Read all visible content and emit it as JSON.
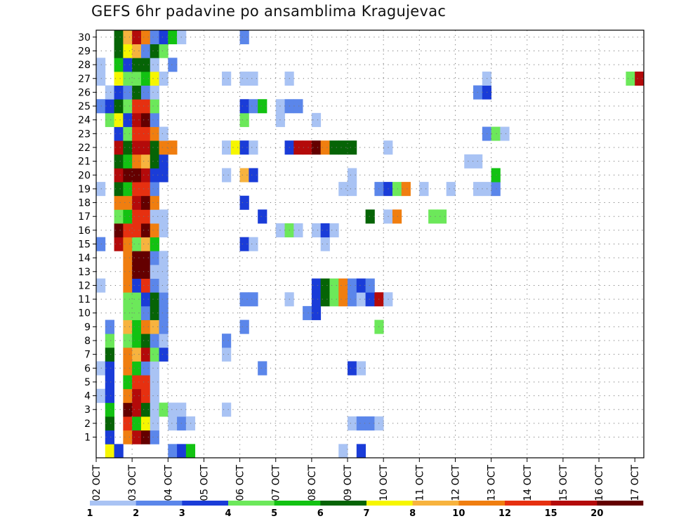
{
  "title": "GEFS 6hr padavine po ansamblima Kragujevac",
  "chart_data": {
    "type": "heatmap",
    "title": "GEFS 6hr padavine po ansamblima Kragujevac",
    "y_label_ticks": [
      "1",
      "2",
      "3",
      "4",
      "5",
      "6",
      "7",
      "8",
      "9",
      "10",
      "11",
      "12",
      "13",
      "14",
      "15",
      "16",
      "17",
      "18",
      "19",
      "20",
      "21",
      "22",
      "23",
      "24",
      "25",
      "26",
      "27",
      "28",
      "29",
      "30"
    ],
    "x_tick_labels": [
      "02 OCT",
      "03 OCT",
      "04 OCT",
      "05 OCT",
      "06 OCT",
      "07 OCT",
      "08 OCT",
      "09 OCT",
      "10 OCT",
      "11 OCT",
      "12 OCT",
      "13 OCT",
      "14 OCT",
      "15 OCT",
      "16 OCT",
      "17 OCT"
    ],
    "steps_per_day": 4,
    "legend_labels": [
      "1",
      "2",
      "3",
      "4",
      "5",
      "6",
      "7",
      "8",
      "10",
      "12",
      "15",
      "20"
    ],
    "legend_colors": [
      "#a9c3f4",
      "#5b86ea",
      "#1a3cd8",
      "#6ce85a",
      "#12c212",
      "#066406",
      "#f6f600",
      "#f7b33e",
      "#f07e10",
      "#e63010",
      "#b40a0a",
      "#640000"
    ],
    "rows": [
      {
        "member": 0,
        "cells": [
          [
            1,
            7
          ],
          [
            2,
            3
          ],
          [
            8,
            2
          ],
          [
            9,
            3
          ],
          [
            10,
            5
          ],
          [
            27,
            1
          ],
          [
            29,
            3
          ]
        ]
      },
      {
        "member": 1,
        "cells": [
          [
            1,
            3
          ],
          [
            3,
            9
          ],
          [
            4,
            11
          ],
          [
            5,
            12
          ],
          [
            6,
            2
          ]
        ]
      },
      {
        "member": 2,
        "cells": [
          [
            1,
            6
          ],
          [
            3,
            10
          ],
          [
            4,
            5
          ],
          [
            5,
            7
          ],
          [
            6,
            1
          ],
          [
            8,
            1
          ],
          [
            9,
            2
          ],
          [
            10,
            1
          ],
          [
            28,
            1
          ],
          [
            29,
            2
          ],
          [
            30,
            2
          ],
          [
            31,
            1
          ]
        ]
      },
      {
        "member": 3,
        "cells": [
          [
            1,
            5
          ],
          [
            3,
            12
          ],
          [
            4,
            11
          ],
          [
            5,
            6
          ],
          [
            6,
            1
          ],
          [
            7,
            4
          ],
          [
            8,
            1
          ],
          [
            9,
            1
          ],
          [
            14,
            1
          ]
        ]
      },
      {
        "member": 4,
        "cells": [
          [
            0,
            1
          ],
          [
            1,
            3
          ],
          [
            3,
            9
          ],
          [
            4,
            11
          ],
          [
            5,
            10
          ],
          [
            6,
            1
          ]
        ]
      },
      {
        "member": 5,
        "cells": [
          [
            1,
            3
          ],
          [
            3,
            5
          ],
          [
            4,
            10
          ],
          [
            5,
            10
          ],
          [
            6,
            1
          ]
        ]
      },
      {
        "member": 6,
        "cells": [
          [
            0,
            1
          ],
          [
            1,
            3
          ],
          [
            3,
            9
          ],
          [
            4,
            5
          ],
          [
            5,
            2
          ],
          [
            6,
            1
          ],
          [
            18,
            2
          ],
          [
            28,
            3
          ],
          [
            29,
            1
          ]
        ]
      },
      {
        "member": 7,
        "cells": [
          [
            1,
            6
          ],
          [
            3,
            9
          ],
          [
            4,
            8
          ],
          [
            5,
            11
          ],
          [
            6,
            4
          ],
          [
            7,
            3
          ],
          [
            14,
            1
          ]
        ]
      },
      {
        "member": 8,
        "cells": [
          [
            1,
            4
          ],
          [
            3,
            4
          ],
          [
            4,
            5
          ],
          [
            5,
            6
          ],
          [
            6,
            2
          ],
          [
            7,
            1
          ],
          [
            14,
            2
          ]
        ]
      },
      {
        "member": 9,
        "cells": [
          [
            1,
            2
          ],
          [
            3,
            8
          ],
          [
            4,
            5
          ],
          [
            5,
            9
          ],
          [
            6,
            8
          ],
          [
            7,
            2
          ],
          [
            16,
            2
          ],
          [
            31,
            4
          ]
        ]
      },
      {
        "member": 10,
        "cells": [
          [
            3,
            4
          ],
          [
            4,
            4
          ],
          [
            5,
            2
          ],
          [
            6,
            6
          ],
          [
            7,
            2
          ],
          [
            23,
            2
          ],
          [
            24,
            3
          ]
        ]
      },
      {
        "member": 11,
        "cells": [
          [
            3,
            4
          ],
          [
            4,
            4
          ],
          [
            5,
            3
          ],
          [
            6,
            6
          ],
          [
            7,
            2
          ],
          [
            16,
            2
          ],
          [
            17,
            2
          ],
          [
            21,
            1
          ],
          [
            24,
            3
          ],
          [
            25,
            6
          ],
          [
            26,
            4
          ],
          [
            27,
            9
          ],
          [
            28,
            2
          ],
          [
            29,
            1
          ],
          [
            30,
            3
          ],
          [
            31,
            11
          ],
          [
            32,
            1
          ]
        ]
      },
      {
        "member": 12,
        "cells": [
          [
            0,
            1
          ],
          [
            3,
            9
          ],
          [
            4,
            3
          ],
          [
            5,
            10
          ],
          [
            6,
            2
          ],
          [
            7,
            1
          ],
          [
            24,
            3
          ],
          [
            25,
            6
          ],
          [
            26,
            4
          ],
          [
            27,
            9
          ],
          [
            28,
            2
          ],
          [
            29,
            3
          ],
          [
            30,
            2
          ]
        ]
      },
      {
        "member": 13,
        "cells": [
          [
            3,
            9
          ],
          [
            4,
            12
          ],
          [
            5,
            12
          ],
          [
            6,
            1
          ],
          [
            7,
            1
          ]
        ]
      },
      {
        "member": 14,
        "cells": [
          [
            3,
            9
          ],
          [
            4,
            12
          ],
          [
            5,
            12
          ],
          [
            6,
            2
          ],
          [
            7,
            1
          ]
        ]
      },
      {
        "member": 15,
        "cells": [
          [
            0,
            2
          ],
          [
            2,
            11
          ],
          [
            3,
            9
          ],
          [
            4,
            4
          ],
          [
            5,
            8
          ],
          [
            6,
            5
          ],
          [
            16,
            3
          ],
          [
            17,
            1
          ],
          [
            25,
            1
          ]
        ]
      },
      {
        "member": 16,
        "cells": [
          [
            2,
            12
          ],
          [
            3,
            10
          ],
          [
            4,
            10
          ],
          [
            5,
            12
          ],
          [
            6,
            9
          ],
          [
            7,
            1
          ],
          [
            20,
            1
          ],
          [
            21,
            4
          ],
          [
            22,
            1
          ],
          [
            24,
            1
          ],
          [
            25,
            3
          ],
          [
            26,
            1
          ]
        ]
      },
      {
        "member": 17,
        "cells": [
          [
            2,
            4
          ],
          [
            3,
            5
          ],
          [
            4,
            10
          ],
          [
            5,
            10
          ],
          [
            6,
            1
          ],
          [
            7,
            1
          ],
          [
            18,
            3
          ],
          [
            30,
            6
          ],
          [
            32,
            1
          ],
          [
            33,
            9
          ],
          [
            37,
            4
          ],
          [
            38,
            4
          ]
        ]
      },
      {
        "member": 18,
        "cells": [
          [
            2,
            9
          ],
          [
            3,
            9
          ],
          [
            4,
            11
          ],
          [
            5,
            12
          ],
          [
            6,
            9
          ],
          [
            16,
            3
          ]
        ]
      },
      {
        "member": 19,
        "cells": [
          [
            0,
            1
          ],
          [
            2,
            6
          ],
          [
            3,
            5
          ],
          [
            4,
            10
          ],
          [
            5,
            10
          ],
          [
            6,
            2
          ],
          [
            27,
            1
          ],
          [
            28,
            1
          ],
          [
            31,
            2
          ],
          [
            32,
            3
          ],
          [
            33,
            4
          ],
          [
            34,
            9
          ],
          [
            36,
            1
          ],
          [
            39,
            1
          ],
          [
            42,
            1
          ],
          [
            43,
            1
          ],
          [
            44,
            2
          ]
        ]
      },
      {
        "member": 20,
        "cells": [
          [
            2,
            11
          ],
          [
            3,
            12
          ],
          [
            4,
            12
          ],
          [
            5,
            11
          ],
          [
            6,
            3
          ],
          [
            7,
            3
          ],
          [
            14,
            1
          ],
          [
            16,
            8
          ],
          [
            17,
            3
          ],
          [
            28,
            1
          ],
          [
            44,
            5
          ]
        ]
      },
      {
        "member": 21,
        "cells": [
          [
            2,
            6
          ],
          [
            3,
            5
          ],
          [
            4,
            9
          ],
          [
            5,
            8
          ],
          [
            6,
            6
          ],
          [
            7,
            3
          ],
          [
            41,
            1
          ],
          [
            42,
            1
          ]
        ]
      },
      {
        "member": 22,
        "cells": [
          [
            2,
            11
          ],
          [
            3,
            6
          ],
          [
            4,
            11
          ],
          [
            5,
            11
          ],
          [
            6,
            6
          ],
          [
            7,
            9
          ],
          [
            8,
            9
          ],
          [
            14,
            1
          ],
          [
            15,
            7
          ],
          [
            16,
            3
          ],
          [
            17,
            1
          ],
          [
            21,
            3
          ],
          [
            22,
            11
          ],
          [
            23,
            11
          ],
          [
            24,
            12
          ],
          [
            25,
            9
          ],
          [
            26,
            6
          ],
          [
            27,
            6
          ],
          [
            28,
            6
          ],
          [
            32,
            1
          ]
        ]
      },
      {
        "member": 23,
        "cells": [
          [
            2,
            3
          ],
          [
            3,
            4
          ],
          [
            4,
            10
          ],
          [
            5,
            10
          ],
          [
            6,
            9
          ],
          [
            7,
            1
          ],
          [
            43,
            2
          ],
          [
            44,
            4
          ],
          [
            45,
            1
          ]
        ]
      },
      {
        "member": 24,
        "cells": [
          [
            1,
            4
          ],
          [
            2,
            7
          ],
          [
            3,
            3
          ],
          [
            4,
            11
          ],
          [
            5,
            12
          ],
          [
            6,
            2
          ],
          [
            16,
            4
          ],
          [
            20,
            1
          ],
          [
            24,
            1
          ]
        ]
      },
      {
        "member": 25,
        "cells": [
          [
            0,
            2
          ],
          [
            1,
            3
          ],
          [
            2,
            6
          ],
          [
            3,
            4
          ],
          [
            4,
            10
          ],
          [
            5,
            10
          ],
          [
            6,
            4
          ],
          [
            16,
            3
          ],
          [
            17,
            2
          ],
          [
            18,
            5
          ],
          [
            20,
            1
          ],
          [
            21,
            2
          ],
          [
            22,
            2
          ]
        ]
      },
      {
        "member": 26,
        "cells": [
          [
            1,
            1
          ],
          [
            2,
            3
          ],
          [
            3,
            2
          ],
          [
            4,
            6
          ],
          [
            5,
            2
          ],
          [
            6,
            1
          ],
          [
            42,
            2
          ],
          [
            43,
            3
          ]
        ]
      },
      {
        "member": 27,
        "cells": [
          [
            0,
            1
          ],
          [
            2,
            7
          ],
          [
            3,
            4
          ],
          [
            4,
            4
          ],
          [
            5,
            5
          ],
          [
            6,
            7
          ],
          [
            7,
            1
          ],
          [
            14,
            1
          ],
          [
            16,
            1
          ],
          [
            17,
            1
          ],
          [
            21,
            1
          ],
          [
            43,
            1
          ],
          [
            59,
            4
          ],
          [
            60,
            11
          ]
        ]
      },
      {
        "member": 28,
        "cells": [
          [
            0,
            1
          ],
          [
            2,
            5
          ],
          [
            3,
            3
          ],
          [
            4,
            6
          ],
          [
            5,
            6
          ],
          [
            6,
            1
          ],
          [
            8,
            2
          ]
        ]
      },
      {
        "member": 29,
        "cells": [
          [
            2,
            6
          ],
          [
            3,
            7
          ],
          [
            4,
            8
          ],
          [
            5,
            2
          ],
          [
            6,
            6
          ],
          [
            7,
            4
          ]
        ]
      },
      {
        "member": 30,
        "cells": [
          [
            2,
            6
          ],
          [
            3,
            8
          ],
          [
            4,
            11
          ],
          [
            5,
            9
          ],
          [
            6,
            2
          ],
          [
            7,
            3
          ],
          [
            8,
            5
          ],
          [
            9,
            1
          ],
          [
            16,
            2
          ]
        ]
      }
    ]
  }
}
